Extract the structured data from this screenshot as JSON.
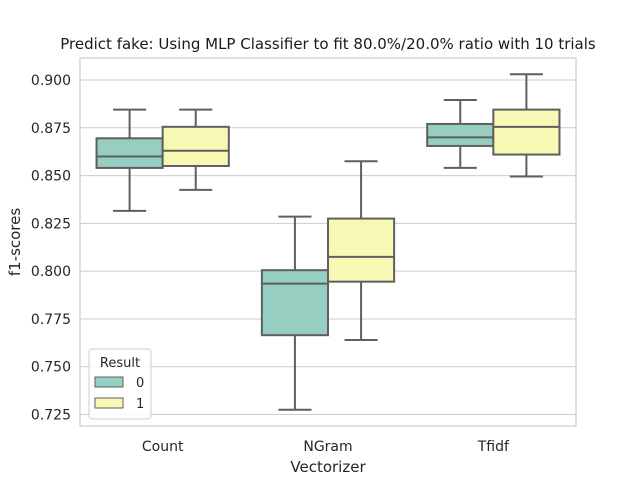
{
  "chart_data": {
    "type": "box",
    "title": "Predict fake: Using MLP Classifier to fit 80.0%/20.0% ratio with 10 trials",
    "xlabel": "Vectorizer",
    "ylabel": "f1-scores",
    "categories": [
      "Count",
      "NGram",
      "Tfidf"
    ],
    "ylim": [
      0.719,
      0.9115
    ],
    "yticks": [
      0.725,
      0.75,
      0.775,
      0.8,
      0.825,
      0.85,
      0.875,
      0.9
    ],
    "ytick_labels": [
      "0.725",
      "0.750",
      "0.775",
      "0.800",
      "0.825",
      "0.850",
      "0.875",
      "0.900"
    ],
    "grid": "horizontal",
    "legend": {
      "title": "Result",
      "placement": "lower-left",
      "entries": [
        "0",
        "1"
      ]
    },
    "series": [
      {
        "name": "0",
        "color": "#96cfc1",
        "boxes": [
          {
            "min": 0.8315,
            "q1": 0.854,
            "median": 0.86,
            "q3": 0.8695,
            "max": 0.8845
          },
          {
            "min": 0.7275,
            "q1": 0.7665,
            "median": 0.7935,
            "q3": 0.8005,
            "max": 0.8285
          },
          {
            "min": 0.854,
            "q1": 0.8655,
            "median": 0.87,
            "q3": 0.877,
            "max": 0.8895
          }
        ]
      },
      {
        "name": "1",
        "color": "#f8f8b5",
        "boxes": [
          {
            "min": 0.8425,
            "q1": 0.855,
            "median": 0.863,
            "q3": 0.8755,
            "max": 0.8845
          },
          {
            "min": 0.764,
            "q1": 0.7945,
            "median": 0.8075,
            "q3": 0.8275,
            "max": 0.8575
          },
          {
            "min": 0.8495,
            "q1": 0.861,
            "median": 0.8755,
            "q3": 0.8845,
            "max": 0.903
          }
        ]
      }
    ],
    "line_color": "#5f5f5f",
    "grid_color": "#cccccc"
  }
}
